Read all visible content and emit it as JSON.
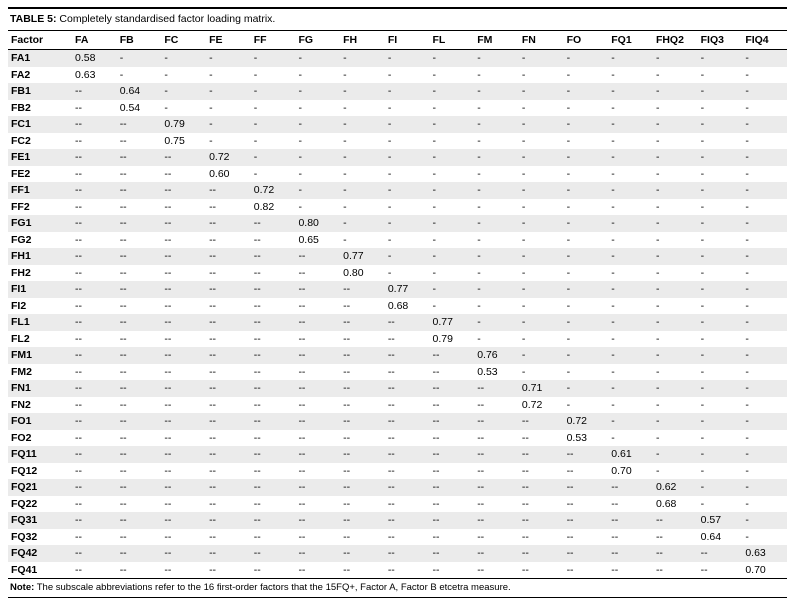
{
  "title": {
    "label": "TABLE 5:",
    "text": "Completely standardised factor loading matrix."
  },
  "colors": {
    "row_stripe": "#ebebeb",
    "rule": "#000000"
  },
  "table": {
    "columns": [
      "Factor",
      "FA",
      "FB",
      "FC",
      "FE",
      "FF",
      "FG",
      "FH",
      "FI",
      "FL",
      "FM",
      "FN",
      "FO",
      "FQ1",
      "FHQ2",
      "FIQ3",
      "FIQ4"
    ],
    "rows": [
      {
        "factor": "FA1",
        "values": [
          "0.58",
          "-",
          "-",
          "-",
          "-",
          "-",
          "-",
          "-",
          "-",
          "-",
          "-",
          "-",
          "-",
          "-",
          "-",
          "-"
        ]
      },
      {
        "factor": "FA2",
        "values": [
          "0.63",
          "-",
          "-",
          "-",
          "-",
          "-",
          "-",
          "-",
          "-",
          "-",
          "-",
          "-",
          "-",
          "-",
          "-",
          "-"
        ]
      },
      {
        "factor": "FB1",
        "values": [
          "--",
          "0.64",
          "-",
          "-",
          "-",
          "-",
          "-",
          "-",
          "-",
          "-",
          "-",
          "-",
          "-",
          "-",
          "-",
          "-"
        ]
      },
      {
        "factor": "FB2",
        "values": [
          "--",
          "0.54",
          "-",
          "-",
          "-",
          "-",
          "-",
          "-",
          "-",
          "-",
          "-",
          "-",
          "-",
          "-",
          "-",
          "-"
        ]
      },
      {
        "factor": "FC1",
        "values": [
          "--",
          "--",
          "0.79",
          "-",
          "-",
          "-",
          "-",
          "-",
          "-",
          "-",
          "-",
          "-",
          "-",
          "-",
          "-",
          "-"
        ]
      },
      {
        "factor": "FC2",
        "values": [
          "--",
          "--",
          "0.75",
          "-",
          "-",
          "-",
          "-",
          "-",
          "-",
          "-",
          "-",
          "-",
          "-",
          "-",
          "-",
          "-"
        ]
      },
      {
        "factor": "FE1",
        "values": [
          "--",
          "--",
          "--",
          "0.72",
          "-",
          "-",
          "-",
          "-",
          "-",
          "-",
          "-",
          "-",
          "-",
          "-",
          "-",
          "-"
        ]
      },
      {
        "factor": "FE2",
        "values": [
          "--",
          "--",
          "--",
          "0.60",
          "-",
          "-",
          "-",
          "-",
          "-",
          "-",
          "-",
          "-",
          "-",
          "-",
          "-",
          "-"
        ]
      },
      {
        "factor": "FF1",
        "values": [
          "--",
          "--",
          "--",
          "--",
          "0.72",
          "-",
          "-",
          "-",
          "-",
          "-",
          "-",
          "-",
          "-",
          "-",
          "-",
          "-"
        ]
      },
      {
        "factor": "FF2",
        "values": [
          "--",
          "--",
          "--",
          "--",
          "0.82",
          "-",
          "-",
          "-",
          "-",
          "-",
          "-",
          "-",
          "-",
          "-",
          "-",
          "-"
        ]
      },
      {
        "factor": "FG1",
        "values": [
          "--",
          "--",
          "--",
          "--",
          "--",
          "0.80",
          "-",
          "-",
          "-",
          "-",
          "-",
          "-",
          "-",
          "-",
          "-",
          "-"
        ]
      },
      {
        "factor": "FG2",
        "values": [
          "--",
          "--",
          "--",
          "--",
          "--",
          "0.65",
          "-",
          "-",
          "-",
          "-",
          "-",
          "-",
          "-",
          "-",
          "-",
          "-"
        ]
      },
      {
        "factor": "FH1",
        "values": [
          "--",
          "--",
          "--",
          "--",
          "--",
          "--",
          "0.77",
          "-",
          "-",
          "-",
          "-",
          "-",
          "-",
          "-",
          "-",
          "-"
        ]
      },
      {
        "factor": "FH2",
        "values": [
          "--",
          "--",
          "--",
          "--",
          "--",
          "--",
          "0.80",
          "-",
          "-",
          "-",
          "-",
          "-",
          "-",
          "-",
          "-",
          "-"
        ]
      },
      {
        "factor": "FI1",
        "values": [
          "--",
          "--",
          "--",
          "--",
          "--",
          "--",
          "--",
          "0.77",
          "-",
          "-",
          "-",
          "-",
          "-",
          "-",
          "-",
          "-"
        ]
      },
      {
        "factor": "FI2",
        "values": [
          "--",
          "--",
          "--",
          "--",
          "--",
          "--",
          "--",
          "0.68",
          "-",
          "-",
          "-",
          "-",
          "-",
          "-",
          "-",
          "-"
        ]
      },
      {
        "factor": "FL1",
        "values": [
          "--",
          "--",
          "--",
          "--",
          "--",
          "--",
          "--",
          "--",
          "0.77",
          "-",
          "-",
          "-",
          "-",
          "-",
          "-",
          "-"
        ]
      },
      {
        "factor": "FL2",
        "values": [
          "--",
          "--",
          "--",
          "--",
          "--",
          "--",
          "--",
          "--",
          "0.79",
          "-",
          "-",
          "-",
          "-",
          "-",
          "-",
          "-"
        ]
      },
      {
        "factor": "FM1",
        "values": [
          "--",
          "--",
          "--",
          "--",
          "--",
          "--",
          "--",
          "--",
          "--",
          "0.76",
          "-",
          "-",
          "-",
          "-",
          "-",
          "-"
        ]
      },
      {
        "factor": "FM2",
        "values": [
          "--",
          "--",
          "--",
          "--",
          "--",
          "--",
          "--",
          "--",
          "--",
          "0.53",
          "-",
          "-",
          "-",
          "-",
          "-",
          "-"
        ]
      },
      {
        "factor": "FN1",
        "values": [
          "--",
          "--",
          "--",
          "--",
          "--",
          "--",
          "--",
          "--",
          "--",
          "--",
          "0.71",
          "-",
          "-",
          "-",
          "-",
          "-"
        ]
      },
      {
        "factor": "FN2",
        "values": [
          "--",
          "--",
          "--",
          "--",
          "--",
          "--",
          "--",
          "--",
          "--",
          "--",
          "0.72",
          "-",
          "-",
          "-",
          "-",
          "-"
        ]
      },
      {
        "factor": "FO1",
        "values": [
          "--",
          "--",
          "--",
          "--",
          "--",
          "--",
          "--",
          "--",
          "--",
          "--",
          "--",
          "0.72",
          "-",
          "-",
          "-",
          "-"
        ]
      },
      {
        "factor": "FO2",
        "values": [
          "--",
          "--",
          "--",
          "--",
          "--",
          "--",
          "--",
          "--",
          "--",
          "--",
          "--",
          "0.53",
          "-",
          "-",
          "-",
          "-"
        ]
      },
      {
        "factor": "FQ11",
        "values": [
          "--",
          "--",
          "--",
          "--",
          "--",
          "--",
          "--",
          "--",
          "--",
          "--",
          "--",
          "--",
          "0.61",
          "-",
          "-",
          "-"
        ]
      },
      {
        "factor": "FQ12",
        "values": [
          "--",
          "--",
          "--",
          "--",
          "--",
          "--",
          "--",
          "--",
          "--",
          "--",
          "--",
          "--",
          "0.70",
          "-",
          "-",
          "-"
        ]
      },
      {
        "factor": "FQ21",
        "values": [
          "--",
          "--",
          "--",
          "--",
          "--",
          "--",
          "--",
          "--",
          "--",
          "--",
          "--",
          "--",
          "--",
          "0.62",
          "-",
          "-"
        ]
      },
      {
        "factor": "FQ22",
        "values": [
          "--",
          "--",
          "--",
          "--",
          "--",
          "--",
          "--",
          "--",
          "--",
          "--",
          "--",
          "--",
          "--",
          "0.68",
          "-",
          "-"
        ]
      },
      {
        "factor": "FQ31",
        "values": [
          "--",
          "--",
          "--",
          "--",
          "--",
          "--",
          "--",
          "--",
          "--",
          "--",
          "--",
          "--",
          "--",
          "--",
          "0.57",
          "-"
        ]
      },
      {
        "factor": "FQ32",
        "values": [
          "--",
          "--",
          "--",
          "--",
          "--",
          "--",
          "--",
          "--",
          "--",
          "--",
          "--",
          "--",
          "--",
          "--",
          "0.64",
          "-"
        ]
      },
      {
        "factor": "FQ42",
        "values": [
          "--",
          "--",
          "--",
          "--",
          "--",
          "--",
          "--",
          "--",
          "--",
          "--",
          "--",
          "--",
          "--",
          "--",
          "--",
          "0.63"
        ]
      },
      {
        "factor": "FQ41",
        "values": [
          "--",
          "--",
          "--",
          "--",
          "--",
          "--",
          "--",
          "--",
          "--",
          "--",
          "--",
          "--",
          "--",
          "--",
          "--",
          "0.70"
        ]
      }
    ]
  },
  "note": {
    "label": "Note:",
    "text": "The subscale abbreviations refer to the 16 first-order factors that the 15FQ+, Factor A, Factor B etcetra measure."
  }
}
